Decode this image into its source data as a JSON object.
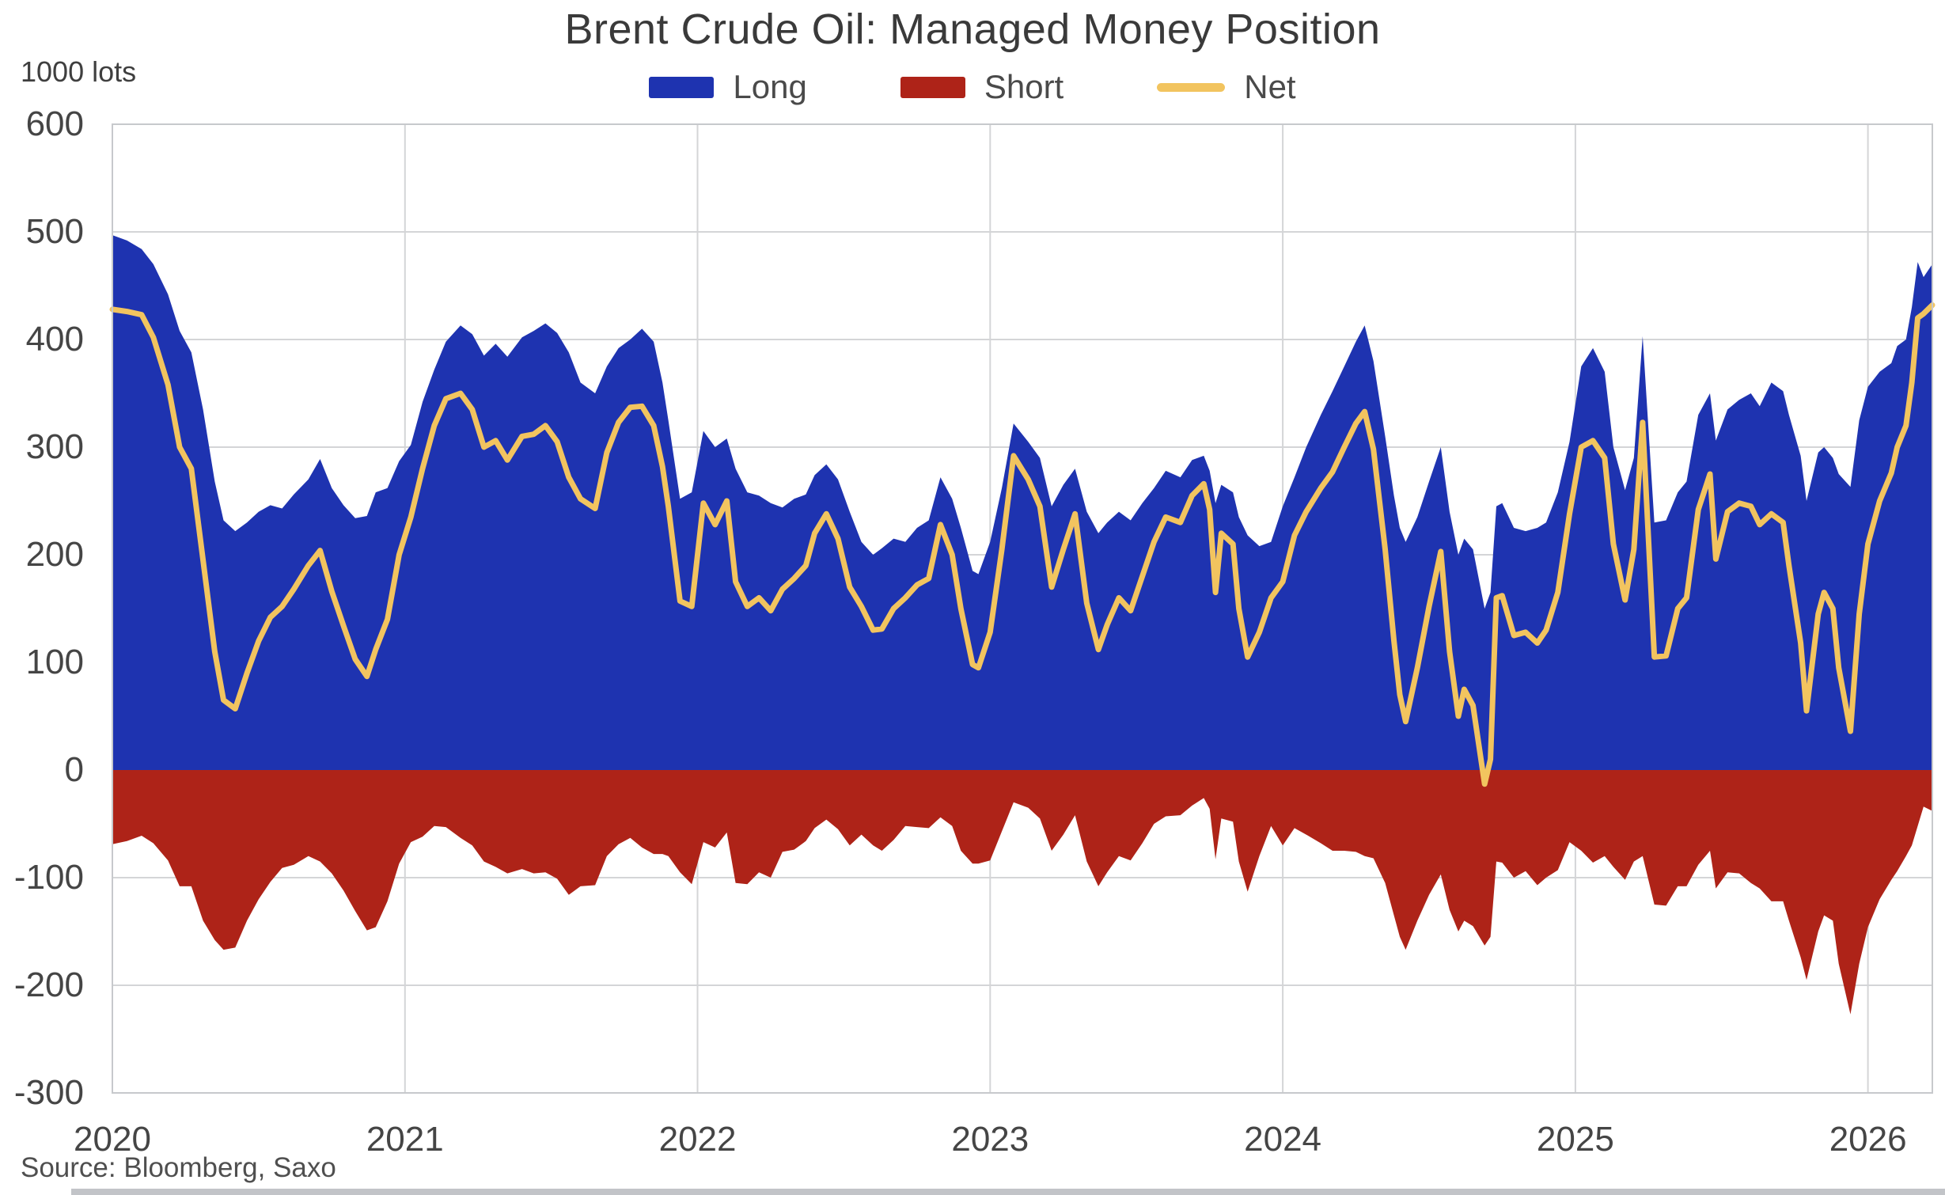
{
  "chart_data": {
    "type": "area+line",
    "title": "Brent Crude Oil: Managed Money Position",
    "ylabel": "1000 lots",
    "source": "Source: Bloomberg, Saxo",
    "xlim": [
      2020.0,
      2026.22
    ],
    "ylim": [
      -300,
      600
    ],
    "grid": true,
    "grid_color": "#d4d5d7",
    "frame_color": "#c7c9cc",
    "legend_position": "top-center",
    "yticks": [
      600,
      500,
      400,
      300,
      200,
      100,
      0,
      -100,
      -200,
      -300
    ],
    "ytick_labels": [
      "600",
      "500",
      "400",
      "300",
      "200",
      "100",
      "0",
      "-100",
      "-200",
      "-300"
    ],
    "xticks": [
      2020,
      2021,
      2022,
      2023,
      2024,
      2025,
      2026
    ],
    "xtick_labels": [
      "2020",
      "2021",
      "2022",
      "2023",
      "2024",
      "2025",
      "2026"
    ],
    "x_unit": "decimal_year_weekly_estimates",
    "x": [
      2020.0,
      2020.05,
      2020.1,
      2020.14,
      2020.19,
      2020.23,
      2020.27,
      2020.31,
      2020.35,
      2020.38,
      2020.42,
      2020.46,
      2020.5,
      2020.54,
      2020.58,
      2020.62,
      2020.67,
      2020.71,
      2020.75,
      2020.79,
      2020.83,
      2020.87,
      2020.9,
      2020.94,
      2020.98,
      2021.02,
      2021.06,
      2021.1,
      2021.14,
      2021.19,
      2021.23,
      2021.27,
      2021.31,
      2021.35,
      2021.4,
      2021.44,
      2021.48,
      2021.52,
      2021.56,
      2021.6,
      2021.65,
      2021.69,
      2021.73,
      2021.77,
      2021.81,
      2021.85,
      2021.88,
      2021.9,
      2021.94,
      2021.98,
      2022.02,
      2022.06,
      2022.1,
      2022.13,
      2022.17,
      2022.21,
      2022.25,
      2022.29,
      2022.33,
      2022.37,
      2022.4,
      2022.44,
      2022.48,
      2022.52,
      2022.56,
      2022.6,
      2022.63,
      2022.67,
      2022.71,
      2022.75,
      2022.79,
      2022.83,
      2022.87,
      2022.9,
      2022.94,
      2022.96,
      2023.0,
      2023.04,
      2023.08,
      2023.13,
      2023.17,
      2023.21,
      2023.25,
      2023.29,
      2023.33,
      2023.37,
      2023.4,
      2023.44,
      2023.48,
      2023.52,
      2023.56,
      2023.6,
      2023.65,
      2023.69,
      2023.73,
      2023.75,
      2023.77,
      2023.79,
      2023.83,
      2023.85,
      2023.88,
      2023.92,
      2023.96,
      2024.0,
      2024.04,
      2024.08,
      2024.13,
      2024.17,
      2024.21,
      2024.25,
      2024.28,
      2024.31,
      2024.35,
      2024.38,
      2024.4,
      2024.42,
      2024.46,
      2024.5,
      2024.54,
      2024.57,
      2024.6,
      2024.62,
      2024.65,
      2024.69,
      2024.71,
      2024.73,
      2024.75,
      2024.79,
      2024.83,
      2024.87,
      2024.9,
      2024.94,
      2024.98,
      2025.02,
      2025.06,
      2025.1,
      2025.13,
      2025.17,
      2025.2,
      2025.23,
      2025.27,
      2025.31,
      2025.35,
      2025.38,
      2025.42,
      2025.46,
      2025.48,
      2025.52,
      2025.56,
      2025.6,
      2025.63,
      2025.67,
      2025.71,
      2025.73,
      2025.77,
      2025.79,
      2025.83,
      2025.85,
      2025.88,
      2025.9,
      2025.94,
      2025.97,
      2026.0,
      2026.04,
      2026.08,
      2026.1,
      2026.13,
      2026.15,
      2026.17,
      2026.19,
      2026.22
    ],
    "series": [
      {
        "name": "Long",
        "type": "area",
        "color": "#1e33b0",
        "values": [
          497,
          492,
          484,
          470,
          442,
          408,
          388,
          335,
          268,
          232,
          222,
          230,
          240,
          246,
          243,
          256,
          270,
          289,
          262,
          246,
          234,
          236,
          258,
          262,
          287,
          302,
          342,
          372,
          398,
          413,
          405,
          385,
          396,
          384,
          402,
          408,
          415,
          406,
          388,
          360,
          350,
          375,
          392,
          400,
          410,
          398,
          360,
          325,
          252,
          258,
          315,
          300,
          308,
          280,
          258,
          255,
          248,
          244,
          252,
          256,
          274,
          284,
          270,
          240,
          212,
          200,
          206,
          215,
          212,
          225,
          232,
          272,
          252,
          225,
          185,
          182,
          212,
          262,
          322,
          305,
          290,
          245,
          265,
          280,
          240,
          220,
          230,
          240,
          232,
          248,
          262,
          278,
          272,
          288,
          292,
          278,
          248,
          265,
          258,
          235,
          218,
          208,
          212,
          245,
          272,
          300,
          330,
          352,
          375,
          398,
          413,
          380,
          310,
          255,
          225,
          212,
          235,
          268,
          300,
          240,
          200,
          215,
          205,
          150,
          165,
          245,
          248,
          225,
          222,
          225,
          230,
          258,
          305,
          375,
          392,
          370,
          300,
          260,
          290,
          403,
          230,
          232,
          258,
          268,
          330,
          350,
          306,
          335,
          344,
          350,
          338,
          360,
          352,
          330,
          292,
          250,
          295,
          300,
          290,
          275,
          263,
          325,
          356,
          370,
          378,
          394,
          400,
          430,
          472,
          458,
          470
        ]
      },
      {
        "name": "Short",
        "type": "area",
        "color": "#ae2318",
        "values": [
          -69,
          -66,
          -61,
          -68,
          -84,
          -108,
          -108,
          -140,
          -158,
          -167,
          -165,
          -140,
          -120,
          -104,
          -91,
          -88,
          -80,
          -85,
          -96,
          -112,
          -131,
          -149,
          -146,
          -122,
          -87,
          -67,
          -62,
          -52,
          -53,
          -63,
          -70,
          -85,
          -90,
          -96,
          -92,
          -96,
          -95,
          -101,
          -116,
          -108,
          -107,
          -80,
          -69,
          -63,
          -72,
          -78,
          -78,
          -80,
          -95,
          -106,
          -67,
          -72,
          -58,
          -105,
          -106,
          -95,
          -100,
          -76,
          -74,
          -66,
          -54,
          -46,
          -55,
          -70,
          -60,
          -70,
          -75,
          -65,
          -52,
          -53,
          -54,
          -44,
          -52,
          -75,
          -87,
          -87,
          -84,
          -57,
          -30,
          -35,
          -45,
          -75,
          -60,
          -42,
          -85,
          -108,
          -95,
          -80,
          -84,
          -68,
          -50,
          -43,
          -42,
          -33,
          -26,
          -36,
          -83,
          -45,
          -48,
          -85,
          -113,
          -80,
          -52,
          -70,
          -54,
          -60,
          -68,
          -75,
          -75,
          -76,
          -80,
          -82,
          -105,
          -135,
          -155,
          -167,
          -140,
          -116,
          -97,
          -130,
          -150,
          -140,
          -145,
          -163,
          -155,
          -85,
          -86,
          -100,
          -94,
          -107,
          -100,
          -93,
          -67,
          -75,
          -86,
          -80,
          -90,
          -102,
          -85,
          -80,
          -125,
          -126,
          -108,
          -108,
          -88,
          -75,
          -110,
          -95,
          -96,
          -105,
          -110,
          -122,
          -122,
          -140,
          -174,
          -195,
          -150,
          -135,
          -140,
          -180,
          -227,
          -180,
          -146,
          -120,
          -102,
          -94,
          -80,
          -70,
          -52,
          -34,
          -38
        ]
      },
      {
        "name": "Net",
        "type": "line",
        "color": "#f2c45f",
        "values": [
          428,
          426,
          423,
          402,
          358,
          300,
          280,
          195,
          110,
          65,
          57,
          90,
          120,
          142,
          152,
          168,
          190,
          204,
          166,
          134,
          103,
          87,
          112,
          140,
          200,
          235,
          280,
          320,
          345,
          350,
          335,
          300,
          306,
          288,
          310,
          312,
          320,
          305,
          272,
          252,
          243,
          295,
          323,
          337,
          338,
          320,
          282,
          245,
          157,
          152,
          248,
          228,
          250,
          175,
          152,
          160,
          148,
          168,
          178,
          190,
          220,
          238,
          215,
          170,
          152,
          130,
          131,
          150,
          160,
          172,
          178,
          228,
          200,
          150,
          98,
          95,
          128,
          205,
          292,
          270,
          245,
          170,
          205,
          238,
          155,
          112,
          135,
          160,
          148,
          180,
          212,
          235,
          230,
          255,
          266,
          242,
          165,
          220,
          210,
          150,
          105,
          128,
          160,
          175,
          218,
          240,
          262,
          277,
          300,
          322,
          333,
          298,
          205,
          120,
          70,
          45,
          95,
          152,
          203,
          110,
          50,
          75,
          60,
          -13,
          10,
          160,
          162,
          125,
          128,
          118,
          130,
          165,
          238,
          300,
          306,
          290,
          210,
          158,
          205,
          323,
          105,
          106,
          150,
          160,
          242,
          275,
          196,
          240,
          248,
          245,
          228,
          238,
          230,
          190,
          118,
          55,
          145,
          165,
          150,
          95,
          36,
          145,
          210,
          250,
          276,
          300,
          320,
          360,
          420,
          424,
          432
        ]
      }
    ]
  }
}
